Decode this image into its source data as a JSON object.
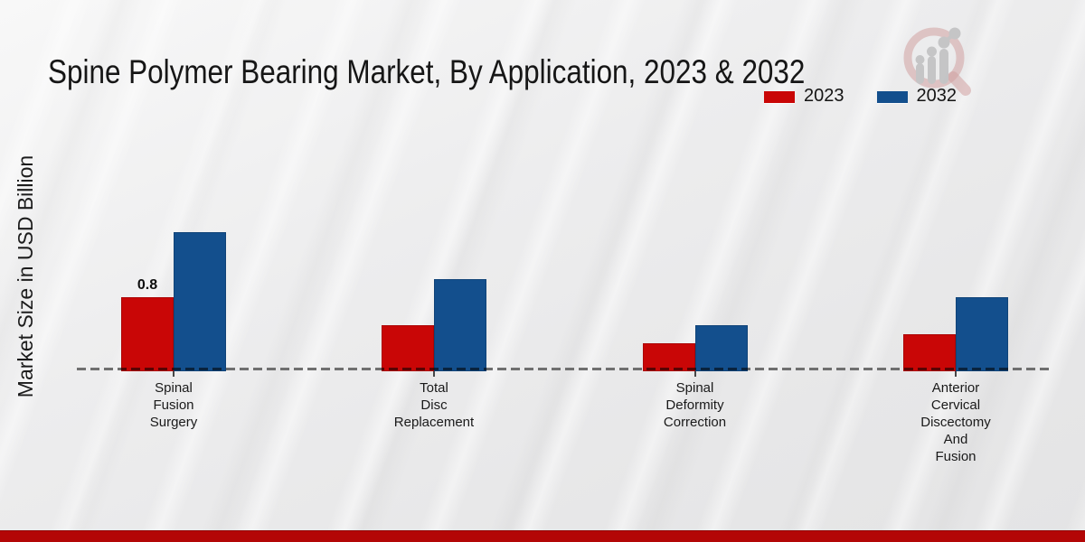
{
  "header": {
    "title": "Spine Polymer Bearing Market, By Application, 2023 & 2032"
  },
  "y_axis": {
    "label": "Market Size in USD Billion"
  },
  "legend": {
    "items": [
      {
        "label": "2023",
        "color": "#c90606"
      },
      {
        "label": "2032",
        "color": "#134f8d"
      }
    ]
  },
  "chart_data": {
    "type": "bar",
    "title": "Spine Polymer Bearing Market, By Application, 2023 & 2032",
    "ylabel": "Market Size in USD Billion",
    "unit": "USD Billion",
    "categories": [
      "Spinal Fusion Surgery",
      "Total Disc Replacement",
      "Spinal Deformity Correction",
      "Anterior Cervical Discectomy And Fusion"
    ],
    "category_lines": [
      [
        "Spinal",
        "Fusion",
        "Surgery"
      ],
      [
        "Total",
        "Disc",
        "Replacement"
      ],
      [
        "Spinal",
        "Deformity",
        "Correction"
      ],
      [
        "Anterior",
        "Cervical",
        "Discectomy",
        "And",
        "Fusion"
      ]
    ],
    "series": [
      {
        "name": "2023",
        "color": "#c90606",
        "values": [
          0.8,
          0.5,
          0.3,
          0.4
        ]
      },
      {
        "name": "2032",
        "color": "#134f8d",
        "values": [
          1.5,
          1.0,
          0.5,
          0.8
        ]
      }
    ],
    "data_labels": [
      {
        "series": 0,
        "category": 0,
        "text": "0.8"
      }
    ],
    "ylim": [
      0,
      1.6
    ],
    "grid": false,
    "legend_position": "top-right",
    "baseline_style": "dashed"
  },
  "footer": {
    "bar_color": "#b30606"
  }
}
